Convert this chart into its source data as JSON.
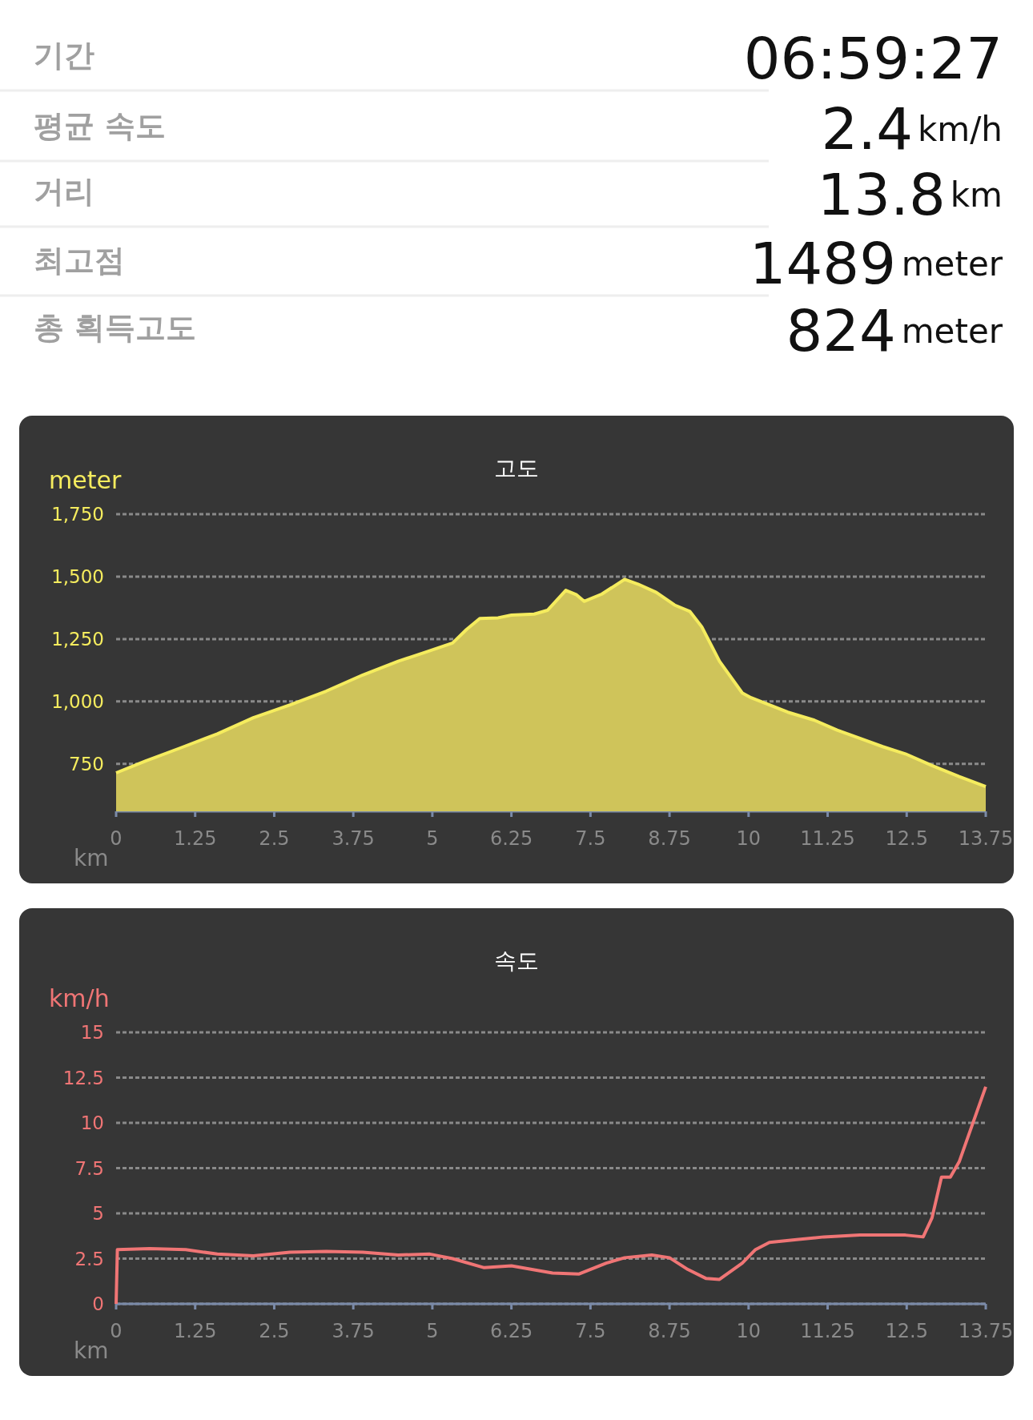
{
  "chart_data": [
    {
      "type": "other",
      "categories": [
        "기간",
        "평균 속도",
        "거리",
        "최고점",
        "총 획득고도"
      ],
      "value_labels": [
        "06:59:27",
        "2.4",
        "13.8",
        "1489",
        "824"
      ],
      "annotations": [
        null,
        "km/h",
        "km",
        "meter",
        "meter"
      ]
    },
    {
      "type": "area",
      "title": "고도",
      "xlabel": "km",
      "ylabel": "meter",
      "color": "#f5ec5e",
      "grid": "y",
      "xlim": [
        0,
        13.75
      ],
      "ylim": [
        560,
        1750
      ],
      "xticks": [
        0,
        1.25,
        2.5,
        3.75,
        5,
        6.25,
        7.5,
        8.75,
        10,
        11.25,
        12.5,
        13.75
      ],
      "yticks": [
        {
          "value": 750,
          "label": "750"
        },
        {
          "value": 1000,
          "label": "1,000"
        },
        {
          "value": 1250,
          "label": "1,250"
        },
        {
          "value": 1500,
          "label": "1,500"
        },
        {
          "value": 1750,
          "label": "1,750"
        }
      ],
      "x": [
        0,
        0.46,
        1.03,
        1.6,
        2.17,
        2.75,
        3.32,
        3.9,
        4.46,
        4.89,
        5.32,
        5.54,
        5.75,
        6.04,
        6.25,
        6.61,
        6.82,
        7.11,
        7.28,
        7.4,
        7.68,
        8.04,
        8.25,
        8.54,
        8.83,
        9.07,
        9.26,
        9.54,
        9.9,
        10.04,
        10.33,
        10.62,
        11.04,
        11.4,
        11.76,
        12.12,
        12.48,
        12.9,
        13.33,
        13.75
      ],
      "values": [
        714,
        761,
        815,
        870,
        935,
        986,
        1041,
        1106,
        1161,
        1197,
        1234,
        1288,
        1332,
        1335,
        1346,
        1350,
        1365,
        1445,
        1427,
        1401,
        1430,
        1489,
        1470,
        1437,
        1386,
        1361,
        1299,
        1161,
        1034,
        1015,
        986,
        957,
        925,
        885,
        852,
        819,
        790,
        743,
        699,
        659
      ]
    },
    {
      "type": "line",
      "title": "속도",
      "xlabel": "km",
      "ylabel": "km/h",
      "color": "#f07575",
      "grid": "y",
      "xlim": [
        0,
        13.75
      ],
      "ylim": [
        0,
        15
      ],
      "xticks": [
        0,
        1.25,
        2.5,
        3.75,
        5,
        6.25,
        7.5,
        8.75,
        10,
        11.25,
        12.5,
        13.75
      ],
      "yticks": [
        0,
        2.5,
        5,
        7.5,
        10,
        12.5,
        15
      ],
      "x": [
        0,
        0.02,
        0.53,
        1.1,
        1.6,
        2.17,
        2.75,
        3.32,
        3.9,
        4.46,
        4.96,
        5.32,
        5.82,
        6.25,
        6.9,
        7.32,
        7.75,
        8.04,
        8.47,
        8.75,
        9.04,
        9.33,
        9.54,
        9.9,
        10.11,
        10.33,
        10.76,
        11.19,
        11.76,
        12.48,
        12.76,
        12.9,
        13.05,
        13.19,
        13.33,
        13.75
      ],
      "values": [
        0,
        3.0,
        3.05,
        3.0,
        2.75,
        2.65,
        2.85,
        2.9,
        2.85,
        2.7,
        2.75,
        2.5,
        2.0,
        2.1,
        1.7,
        1.65,
        2.25,
        2.55,
        2.7,
        2.55,
        1.9,
        1.4,
        1.35,
        2.25,
        3.0,
        3.4,
        3.55,
        3.7,
        3.8,
        3.8,
        3.7,
        4.75,
        7.0,
        7.0,
        7.85,
        12.0
      ]
    }
  ]
}
